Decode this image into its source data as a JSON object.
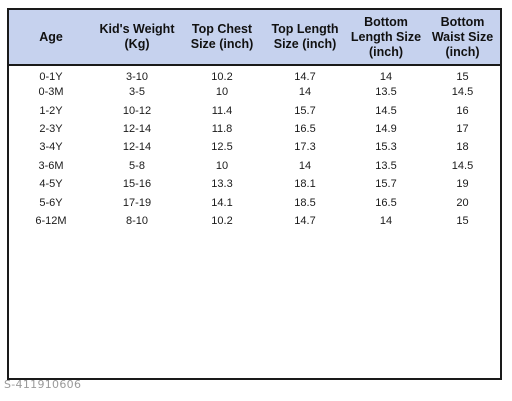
{
  "size_chart": {
    "headers": [
      "Age",
      "Kid's Weight (Kg)",
      "Top Chest Size (inch)",
      "Top Length Size (inch)",
      "Bottom Length Size (inch)",
      "Bottom Waist Size (inch)"
    ],
    "rows": [
      [
        "0-1Y",
        "3-10",
        "10.2",
        "14.7",
        "14",
        "15"
      ],
      [
        "0-3M",
        "3-5",
        "10",
        "14",
        "13.5",
        "14.5"
      ],
      [
        "1-2Y",
        "10-12",
        "11.4",
        "15.7",
        "14.5",
        "16"
      ],
      [
        "2-3Y",
        "12-14",
        "11.8",
        "16.5",
        "14.9",
        "17"
      ],
      [
        "3-4Y",
        "12-14",
        "12.5",
        "17.3",
        "15.3",
        "18"
      ],
      [
        "3-6M",
        "5-8",
        "10",
        "14",
        "13.5",
        "14.5"
      ],
      [
        "4-5Y",
        "15-16",
        "13.3",
        "18.1",
        "15.7",
        "19"
      ],
      [
        "5-6Y",
        "17-19",
        "14.1",
        "18.5",
        "16.5",
        "20"
      ],
      [
        "6-12M",
        "8-10",
        "10.2",
        "14.7",
        "14",
        "15"
      ]
    ]
  },
  "watermark": "S-411910606",
  "colors": {
    "header_background": "#c6d2ee",
    "border": "#1a1a1a",
    "text": "#111111"
  }
}
